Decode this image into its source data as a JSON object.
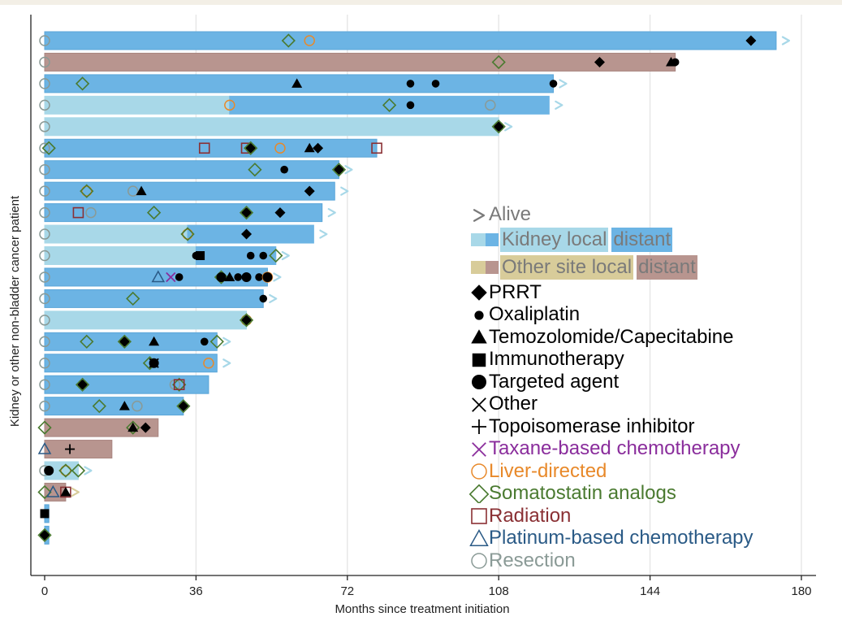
{
  "chart_data": {
    "type": "swimmer",
    "xlabel": "Months since treatment initiation",
    "ylabel": "Kidney or other non-bladder cancer patient",
    "xlim": [
      0,
      180
    ],
    "xticks": [
      0,
      36,
      72,
      108,
      144,
      180
    ],
    "x_gridlines": true,
    "legend_placement": "right",
    "colors": {
      "kidney_local": "#a8d8e8",
      "kidney_distant": "#6cb4e4",
      "other_local": "#d8cc9a",
      "other_distant": "#b8958f",
      "alive": "#a8d8e8",
      "prrt": "#000000",
      "oxaliplatin": "#000000",
      "temozolomide": "#000000",
      "immunotherapy": "#000000",
      "targeted": "#000000",
      "other": "#000000",
      "topoisomerase": "#000000",
      "taxane": "#8a2d9c",
      "liver": "#e8892a",
      "somatostatin": "#4a7a30",
      "radiation": "#8a3034",
      "platinum": "#2a5a86",
      "resection": "#8a9a96"
    },
    "legend": [
      {
        "key": "alive",
        "marker": "chevron",
        "label": "Alive",
        "color": "#7a7a7a"
      },
      {
        "key": "kidney",
        "marker": "bars",
        "label": "Kidney local",
        "label2": "distant",
        "color": "#7a7a7a",
        "c1": "#a8d8e8",
        "c2": "#6cb4e4"
      },
      {
        "key": "other_site",
        "marker": "bars",
        "label": "Other site local",
        "label2": "distant",
        "color": "#7a7a7a",
        "c1": "#d8cc9a",
        "c2": "#b8958f"
      },
      {
        "key": "prrt",
        "marker": "diamond-filled",
        "label": "PRRT",
        "color": "#000000"
      },
      {
        "key": "oxaliplatin",
        "marker": "dot-small",
        "label": "Oxaliplatin",
        "color": "#000000"
      },
      {
        "key": "temozolomide",
        "marker": "triangle-filled",
        "label": "Temozolomide/Capecitabine",
        "color": "#000000"
      },
      {
        "key": "immunotherapy",
        "marker": "square-filled",
        "label": "Immunotherapy",
        "color": "#000000"
      },
      {
        "key": "targeted",
        "marker": "dot-large",
        "label": "Targeted agent",
        "color": "#000000"
      },
      {
        "key": "other",
        "marker": "x",
        "label": "Other",
        "color": "#000000"
      },
      {
        "key": "topoisomerase",
        "marker": "plus",
        "label": "Topoisomerase inhibitor",
        "color": "#000000"
      },
      {
        "key": "taxane",
        "marker": "x",
        "label": "Taxane-based chemotherapy",
        "color": "#8a2d9c"
      },
      {
        "key": "liver",
        "marker": "circle-open",
        "label": "Liver-directed",
        "color": "#e8892a"
      },
      {
        "key": "somatostatin",
        "marker": "diamond-open",
        "label": "Somatostatin analogs",
        "color": "#4a7a30"
      },
      {
        "key": "radiation",
        "marker": "square-open",
        "label": "Radiation",
        "color": "#8a3034"
      },
      {
        "key": "platinum",
        "marker": "triangle-open",
        "label": "Platinum-based chemotherapy",
        "color": "#2a5a86"
      },
      {
        "key": "resection",
        "marker": "circle-open",
        "label": "Resection",
        "color": "#8a9a96"
      }
    ],
    "patients": [
      {
        "id": 1,
        "site": "kidney",
        "local_end": 0,
        "total": 174,
        "alive": true,
        "events": [
          {
            "t": 0,
            "type": "resection"
          },
          {
            "t": 58,
            "type": "somatostatin"
          },
          {
            "t": 63,
            "type": "liver"
          },
          {
            "t": 168,
            "type": "prrt"
          }
        ]
      },
      {
        "id": 2,
        "site": "other",
        "local_end": 0,
        "total": 150,
        "alive": false,
        "events": [
          {
            "t": 0,
            "type": "resection"
          },
          {
            "t": 108,
            "type": "somatostatin"
          },
          {
            "t": 132,
            "type": "prrt"
          },
          {
            "t": 149,
            "type": "temozolomide"
          },
          {
            "t": 150,
            "type": "oxaliplatin"
          }
        ]
      },
      {
        "id": 3,
        "site": "kidney",
        "local_end": 0,
        "total": 121,
        "alive": true,
        "events": [
          {
            "t": 0,
            "type": "resection"
          },
          {
            "t": 9,
            "type": "somatostatin"
          },
          {
            "t": 60,
            "type": "temozolomide"
          },
          {
            "t": 87,
            "type": "oxaliplatin"
          },
          {
            "t": 93,
            "type": "oxaliplatin"
          },
          {
            "t": 121,
            "type": "oxaliplatin"
          }
        ]
      },
      {
        "id": 4,
        "site": "kidney",
        "local_end": 44,
        "total": 120,
        "alive": true,
        "events": [
          {
            "t": 0,
            "type": "resection"
          },
          {
            "t": 44,
            "type": "liver"
          },
          {
            "t": 82,
            "type": "somatostatin"
          },
          {
            "t": 87,
            "type": "oxaliplatin"
          },
          {
            "t": 106,
            "type": "resection"
          }
        ]
      },
      {
        "id": 5,
        "site": "kidney",
        "local_end": 108,
        "total": 108,
        "alive": true,
        "events": [
          {
            "t": 0,
            "type": "resection"
          },
          {
            "t": 108,
            "type": "targeted"
          },
          {
            "t": 108,
            "type": "somatostatin"
          }
        ]
      },
      {
        "id": 6,
        "site": "kidney",
        "local_end": 0,
        "total": 79,
        "alive": false,
        "events": [
          {
            "t": 0,
            "type": "resection"
          },
          {
            "t": 1,
            "type": "somatostatin"
          },
          {
            "t": 38,
            "type": "radiation"
          },
          {
            "t": 48,
            "type": "radiation"
          },
          {
            "t": 49,
            "type": "targeted"
          },
          {
            "t": 49,
            "type": "somatostatin"
          },
          {
            "t": 56,
            "type": "liver"
          },
          {
            "t": 63,
            "type": "temozolomide"
          },
          {
            "t": 65,
            "type": "prrt"
          },
          {
            "t": 79,
            "type": "radiation"
          }
        ]
      },
      {
        "id": 7,
        "site": "kidney",
        "local_end": 0,
        "total": 70,
        "alive": true,
        "events": [
          {
            "t": 0,
            "type": "resection"
          },
          {
            "t": 50,
            "type": "somatostatin"
          },
          {
            "t": 57,
            "type": "oxaliplatin"
          },
          {
            "t": 70,
            "type": "targeted"
          },
          {
            "t": 70,
            "type": "somatostatin"
          }
        ]
      },
      {
        "id": 8,
        "site": "kidney",
        "local_end": 0,
        "total": 69,
        "alive": true,
        "events": [
          {
            "t": 0,
            "type": "resection"
          },
          {
            "t": 10,
            "type": "liver"
          },
          {
            "t": 10,
            "type": "somatostatin"
          },
          {
            "t": 21,
            "type": "resection"
          },
          {
            "t": 23,
            "type": "temozolomide"
          },
          {
            "t": 63,
            "type": "prrt"
          }
        ]
      },
      {
        "id": 9,
        "site": "kidney",
        "local_end": 0,
        "total": 66,
        "alive": true,
        "events": [
          {
            "t": 0,
            "type": "resection"
          },
          {
            "t": 8,
            "type": "radiation"
          },
          {
            "t": 11,
            "type": "resection"
          },
          {
            "t": 26,
            "type": "somatostatin"
          },
          {
            "t": 48,
            "type": "targeted"
          },
          {
            "t": 48,
            "type": "somatostatin"
          },
          {
            "t": 56,
            "type": "prrt"
          }
        ]
      },
      {
        "id": 10,
        "site": "kidney",
        "local_end": 34,
        "total": 64,
        "alive": true,
        "events": [
          {
            "t": 0,
            "type": "resection"
          },
          {
            "t": 34,
            "type": "liver"
          },
          {
            "t": 34,
            "type": "somatostatin"
          },
          {
            "t": 48,
            "type": "prrt"
          }
        ]
      },
      {
        "id": 11,
        "site": "kidney",
        "local_end": 36,
        "total": 55,
        "alive": true,
        "events": [
          {
            "t": 0,
            "type": "resection"
          },
          {
            "t": 36,
            "type": "oxaliplatin"
          },
          {
            "t": 37,
            "type": "immunotherapy"
          },
          {
            "t": 49,
            "type": "oxaliplatin"
          },
          {
            "t": 52,
            "type": "oxaliplatin"
          },
          {
            "t": 55,
            "type": "somatostatin"
          }
        ]
      },
      {
        "id": 12,
        "site": "kidney",
        "local_end": 0,
        "total": 53,
        "alive": true,
        "events": [
          {
            "t": 0,
            "type": "resection"
          },
          {
            "t": 27,
            "type": "platinum"
          },
          {
            "t": 30,
            "type": "taxane"
          },
          {
            "t": 32,
            "type": "oxaliplatin"
          },
          {
            "t": 42,
            "type": "somatostatin"
          },
          {
            "t": 42,
            "type": "targeted"
          },
          {
            "t": 44,
            "type": "temozolomide"
          },
          {
            "t": 46,
            "type": "oxaliplatin"
          },
          {
            "t": 48,
            "type": "targeted"
          },
          {
            "t": 51,
            "type": "oxaliplatin"
          },
          {
            "t": 53,
            "type": "liver"
          },
          {
            "t": 53,
            "type": "targeted"
          }
        ]
      },
      {
        "id": 13,
        "site": "kidney",
        "local_end": 0,
        "total": 52,
        "alive": true,
        "events": [
          {
            "t": 0,
            "type": "resection"
          },
          {
            "t": 21,
            "type": "somatostatin"
          },
          {
            "t": 52,
            "type": "oxaliplatin"
          }
        ]
      },
      {
        "id": 14,
        "site": "kidney",
        "local_end": 48,
        "total": 48,
        "alive": false,
        "events": [
          {
            "t": 0,
            "type": "resection"
          },
          {
            "t": 48,
            "type": "liver"
          },
          {
            "t": 48,
            "type": "targeted"
          },
          {
            "t": 48,
            "type": "somatostatin"
          }
        ]
      },
      {
        "id": 15,
        "site": "kidney",
        "local_end": 0,
        "total": 41,
        "alive": true,
        "events": [
          {
            "t": 0,
            "type": "resection"
          },
          {
            "t": 10,
            "type": "somatostatin"
          },
          {
            "t": 19,
            "type": "targeted"
          },
          {
            "t": 19,
            "type": "somatostatin"
          },
          {
            "t": 26,
            "type": "temozolomide"
          },
          {
            "t": 38,
            "type": "oxaliplatin"
          },
          {
            "t": 41,
            "type": "somatostatin"
          }
        ]
      },
      {
        "id": 16,
        "site": "kidney",
        "local_end": 0,
        "total": 41,
        "alive": true,
        "events": [
          {
            "t": 0,
            "type": "resection"
          },
          {
            "t": 25,
            "type": "somatostatin"
          },
          {
            "t": 26,
            "type": "targeted"
          },
          {
            "t": 26,
            "type": "other"
          },
          {
            "t": 39,
            "type": "liver"
          }
        ]
      },
      {
        "id": 17,
        "site": "kidney",
        "local_end": 0,
        "total": 39,
        "alive": false,
        "events": [
          {
            "t": 0,
            "type": "resection"
          },
          {
            "t": 9,
            "type": "targeted"
          },
          {
            "t": 9,
            "type": "somatostatin"
          },
          {
            "t": 31,
            "type": "resection"
          },
          {
            "t": 32,
            "type": "somatostatin"
          },
          {
            "t": 32,
            "type": "radiation"
          }
        ]
      },
      {
        "id": 18,
        "site": "kidney",
        "local_end": 0,
        "total": 33,
        "alive": false,
        "events": [
          {
            "t": 0,
            "type": "resection"
          },
          {
            "t": 13,
            "type": "somatostatin"
          },
          {
            "t": 19,
            "type": "temozolomide"
          },
          {
            "t": 22,
            "type": "resection"
          },
          {
            "t": 33,
            "type": "prrt"
          },
          {
            "t": 33,
            "type": "somatostatin"
          }
        ]
      },
      {
        "id": 19,
        "site": "other",
        "local_end": 0,
        "total": 27,
        "alive": false,
        "events": [
          {
            "t": 0,
            "type": "somatostatin"
          },
          {
            "t": 21,
            "type": "somatostatin"
          },
          {
            "t": 21,
            "type": "temozolomide"
          },
          {
            "t": 24,
            "type": "prrt"
          }
        ]
      },
      {
        "id": 20,
        "site": "other",
        "local_end": 0,
        "total": 16,
        "alive": false,
        "events": [
          {
            "t": 0,
            "type": "platinum"
          },
          {
            "t": 6,
            "type": "topoisomerase"
          }
        ]
      },
      {
        "id": 21,
        "site": "kidney",
        "local_end": 8,
        "total": 8,
        "alive": true,
        "events": [
          {
            "t": 0,
            "type": "resection"
          },
          {
            "t": 1,
            "type": "targeted"
          },
          {
            "t": 5,
            "type": "liver"
          },
          {
            "t": 5,
            "type": "somatostatin"
          },
          {
            "t": 8,
            "type": "somatostatin"
          }
        ]
      },
      {
        "id": 22,
        "site": "other",
        "local_end": 0,
        "total": 5,
        "alive": true,
        "events": [
          {
            "t": 0,
            "type": "somatostatin"
          },
          {
            "t": 2,
            "type": "platinum"
          },
          {
            "t": 5,
            "type": "radiation"
          },
          {
            "t": 5,
            "type": "temozolomide"
          }
        ]
      },
      {
        "id": 23,
        "site": "kidney",
        "local_end": 0,
        "total": 1,
        "alive": false,
        "events": [
          {
            "t": 0,
            "type": "immunotherapy"
          }
        ]
      },
      {
        "id": 24,
        "site": "kidney",
        "local_end": 0,
        "total": 1,
        "alive": false,
        "events": [
          {
            "t": 0,
            "type": "targeted"
          },
          {
            "t": 0,
            "type": "somatostatin"
          }
        ]
      }
    ]
  }
}
